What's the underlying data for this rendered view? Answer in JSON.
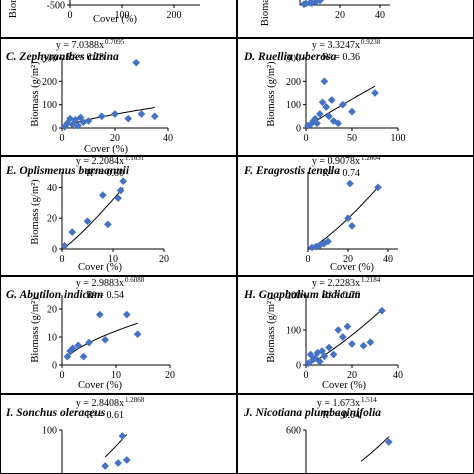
{
  "chart_data": [
    {
      "panel": "A",
      "title": "",
      "equation": "",
      "r2": "",
      "type": "scatter",
      "xlabel": "Cover (%)",
      "ylabel": "Biomass",
      "yticks": [
        "-500"
      ],
      "xticks": [
        "0",
        "100",
        "200"
      ],
      "points": [],
      "trend_coef": null,
      "trend_exp": null,
      "xlim": [
        0,
        250
      ],
      "ylim": [
        -500,
        0
      ]
    },
    {
      "panel": "B",
      "title": "",
      "equation": "",
      "r2": "",
      "type": "scatter",
      "xlabel": "",
      "ylabel": "Biomass",
      "yticks": [],
      "xticks": [
        "20",
        "40"
      ],
      "points": [
        [
          2,
          2
        ],
        [
          3,
          4
        ],
        [
          5,
          6
        ],
        [
          6,
          5
        ],
        [
          8,
          9
        ],
        [
          10,
          12
        ]
      ],
      "trend_coef": null,
      "trend_exp": null,
      "xlim": [
        0,
        45
      ],
      "ylim": [
        0,
        40
      ]
    },
    {
      "panel": "C",
      "title": "C. Zephyranthes citrina",
      "equation": "y = 7.0388x",
      "equation_exp": "0.7095",
      "r2": "R² = 0.28",
      "type": "scatter",
      "xlabel": "Cover (%)",
      "ylabel": "Biomass (g/m²)",
      "yticks": [
        "0",
        "100",
        "200",
        "300"
      ],
      "xticks": [
        "0",
        "20",
        "40"
      ],
      "points": [
        [
          1,
          5
        ],
        [
          2,
          20
        ],
        [
          3,
          40
        ],
        [
          4,
          15
        ],
        [
          5,
          35
        ],
        [
          6,
          10
        ],
        [
          7,
          45
        ],
        [
          8,
          25
        ],
        [
          10,
          30
        ],
        [
          15,
          50
        ],
        [
          20,
          60
        ],
        [
          25,
          40
        ],
        [
          28,
          280
        ],
        [
          30,
          60
        ],
        [
          35,
          50
        ]
      ],
      "trend_coef": 7.0388,
      "trend_exp": 0.7095,
      "xlim": [
        0,
        40
      ],
      "ylim": [
        0,
        300
      ]
    },
    {
      "panel": "D",
      "title": "D. Ruellia tuberosa",
      "equation": "y = 3.3247x",
      "equation_exp": "0.9238",
      "r2": "R² = 0.36",
      "type": "scatter",
      "xlabel": "",
      "ylabel": "Biomass (g/m²)",
      "yticks": [
        "0",
        "100",
        "200",
        "300"
      ],
      "xticks": [
        "0",
        "50",
        "100"
      ],
      "points": [
        [
          2,
          10
        ],
        [
          5,
          15
        ],
        [
          8,
          30
        ],
        [
          10,
          40
        ],
        [
          12,
          20
        ],
        [
          15,
          60
        ],
        [
          18,
          110
        ],
        [
          20,
          200
        ],
        [
          22,
          90
        ],
        [
          25,
          50
        ],
        [
          28,
          120
        ],
        [
          30,
          30
        ],
        [
          35,
          20
        ],
        [
          40,
          100
        ],
        [
          50,
          70
        ],
        [
          75,
          150
        ]
      ],
      "trend_coef": 3.3247,
      "trend_exp": 0.9238,
      "xlim": [
        0,
        100
      ],
      "ylim": [
        0,
        300
      ]
    },
    {
      "panel": "E",
      "title": "E. Oplismenus burmannii",
      "equation": "y = 2.2084x",
      "equation_exp": "1.1631",
      "r2": "R² = 0.80",
      "type": "scatter",
      "xlabel": "Cover (%)",
      "ylabel": "Biomass (g/m²)",
      "yticks": [
        "0",
        "20",
        "40"
      ],
      "xticks": [
        "0",
        "10",
        "20"
      ],
      "points": [
        [
          0.5,
          2
        ],
        [
          2,
          11
        ],
        [
          5,
          18
        ],
        [
          8,
          35
        ],
        [
          9,
          16
        ],
        [
          11,
          33
        ],
        [
          11.5,
          38
        ],
        [
          12,
          44
        ]
      ],
      "trend_coef": 2.2084,
      "trend_exp": 1.1631,
      "xlim": [
        0,
        20
      ],
      "ylim": [
        0,
        50
      ]
    },
    {
      "panel": "F",
      "title": "F. Eragrostis tenella",
      "equation": "y = 0.9078x",
      "equation_exp": "1.2604",
      "r2": "R² = 0.74",
      "type": "scatter",
      "xlabel": "Cover (%)",
      "ylabel": "",
      "yticks": [],
      "xticks": [
        "0",
        "20",
        "40"
      ],
      "points": [
        [
          2,
          2
        ],
        [
          4,
          3
        ],
        [
          6,
          5
        ],
        [
          8,
          7
        ],
        [
          10,
          10
        ],
        [
          20,
          40
        ],
        [
          21,
          85
        ],
        [
          22,
          30
        ],
        [
          35,
          80
        ]
      ],
      "trend_coef": 0.9078,
      "trend_exp": 1.2604,
      "xlim": [
        0,
        45
      ],
      "ylim": [
        0,
        100
      ]
    },
    {
      "panel": "G",
      "title": "G. Abutilon indicum",
      "equation": "y = 2.9883x",
      "equation_exp": "0.6088",
      "r2": "R² = 0.54",
      "type": "scatter",
      "xlabel": "Cover (%)",
      "ylabel": "Biomass (g/m²)",
      "yticks": [
        "0",
        "10",
        "20"
      ],
      "xticks": [
        "0",
        "10",
        "20"
      ],
      "points": [
        [
          1,
          3
        ],
        [
          1.5,
          5
        ],
        [
          2,
          6
        ],
        [
          3,
          7
        ],
        [
          4,
          3
        ],
        [
          5,
          8
        ],
        [
          7,
          18
        ],
        [
          8,
          9
        ],
        [
          12,
          18
        ],
        [
          14,
          11
        ]
      ],
      "trend_coef": 2.9883,
      "trend_exp": 0.6088,
      "xlim": [
        0,
        20
      ],
      "ylim": [
        0,
        25
      ]
    },
    {
      "panel": "H",
      "title": "H. Gnaphalium indicum",
      "equation": "y = 2.2283x",
      "equation_exp": "1.2184",
      "r2": "R² = 0.76",
      "type": "scatter",
      "xlabel": "Cover (%)",
      "ylabel": "Biomass (g/m²)",
      "yticks": [
        "0",
        "100",
        "200"
      ],
      "xticks": [
        "0",
        "20",
        "40"
      ],
      "points": [
        [
          1,
          5
        ],
        [
          2,
          30
        ],
        [
          3,
          15
        ],
        [
          4,
          20
        ],
        [
          5,
          35
        ],
        [
          6,
          10
        ],
        [
          7,
          40
        ],
        [
          8,
          25
        ],
        [
          10,
          50
        ],
        [
          12,
          30
        ],
        [
          14,
          100
        ],
        [
          16,
          80
        ],
        [
          18,
          110
        ],
        [
          20,
          60
        ],
        [
          25,
          55
        ],
        [
          28,
          65
        ],
        [
          33,
          155
        ]
      ],
      "trend_coef": 2.2283,
      "trend_exp": 1.2184,
      "xlim": [
        0,
        40
      ],
      "ylim": [
        0,
        200
      ]
    },
    {
      "panel": "I",
      "title": "I. Sonchus oleraceus",
      "equation": "y = 2.8408x",
      "equation_exp": "1.2868",
      "r2": "R² = 0.61",
      "type": "scatter",
      "xlabel": "",
      "ylabel": "",
      "yticks": [
        "100"
      ],
      "xticks": [],
      "points": [
        [
          14,
          90
        ],
        [
          15,
          50
        ],
        [
          13,
          45
        ],
        [
          10,
          40
        ]
      ],
      "trend_coef": 2.8408,
      "trend_exp": 1.2868,
      "xlim": [
        0,
        25
      ],
      "ylim": [
        0,
        100
      ]
    },
    {
      "panel": "J",
      "title": "J. Nicotiana plumbaginifolia",
      "equation": "y = 1.673x",
      "equation_exp": "1.514",
      "r2": "R² = 0.64",
      "type": "scatter",
      "xlabel": "",
      "ylabel": "",
      "yticks": [
        "600"
      ],
      "xticks": [],
      "points": [
        [
          30,
          100
        ],
        [
          45,
          480
        ]
      ],
      "trend_coef": 1.673,
      "trend_exp": 1.514,
      "xlim": [
        0,
        50
      ],
      "ylim": [
        0,
        600
      ]
    }
  ],
  "colors": {
    "marker": "#4472c4",
    "trendline": "#000000",
    "panel_border": "#000000"
  }
}
